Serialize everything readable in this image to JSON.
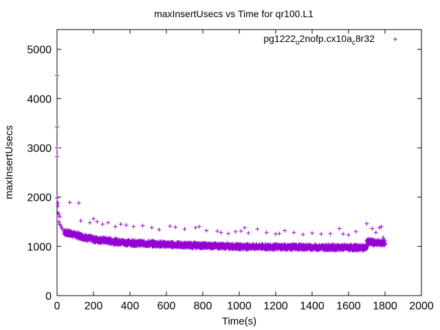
{
  "chart_data": {
    "type": "scatter",
    "title": "maxInsertUsecs vs Time for qr100.L1",
    "xlabel": "Time(s)",
    "ylabel": "maxInsertUsecs",
    "xlim": [
      0,
      2000
    ],
    "ylim": [
      0,
      5400
    ],
    "x_ticks": [
      0,
      200,
      400,
      600,
      800,
      1000,
      1200,
      1400,
      1600,
      1800,
      2000
    ],
    "y_ticks": [
      0,
      1000,
      2000,
      3000,
      4000,
      5000
    ],
    "grid": false,
    "legend": "top-right",
    "color": "#9400d3",
    "series": [
      {
        "name": "pg1222",
        "name_sub": "o",
        "name_mid": "2nofp.cx10a",
        "name_sub2": "c",
        "name_end": "8r32",
        "points": [
          [
            0,
            4470
          ],
          [
            0,
            3420
          ],
          [
            0,
            3000
          ],
          [
            0,
            2820
          ],
          [
            0,
            1980
          ],
          [
            5,
            1880
          ],
          [
            5,
            1820
          ],
          [
            5,
            1680
          ],
          [
            10,
            1650
          ],
          [
            15,
            1600
          ],
          [
            10,
            1500
          ],
          [
            15,
            1450
          ],
          [
            20,
            1420
          ],
          [
            25,
            1380
          ],
          [
            30,
            1350
          ],
          [
            40,
            1320
          ],
          [
            50,
            1300
          ],
          [
            70,
            1890
          ],
          [
            120,
            1880
          ],
          [
            130,
            1520
          ],
          [
            180,
            1480
          ],
          [
            200,
            1560
          ],
          [
            220,
            1500
          ],
          [
            250,
            1450
          ],
          [
            280,
            1480
          ],
          [
            320,
            1400
          ],
          [
            350,
            1450
          ],
          [
            380,
            1430
          ],
          [
            420,
            1400
          ],
          [
            470,
            1420
          ],
          [
            520,
            1380
          ],
          [
            560,
            1340
          ],
          [
            620,
            1410
          ],
          [
            650,
            1390
          ],
          [
            700,
            1350
          ],
          [
            760,
            1380
          ],
          [
            780,
            1400
          ],
          [
            820,
            1320
          ],
          [
            880,
            1310
          ],
          [
            900,
            1280
          ],
          [
            940,
            1260
          ],
          [
            980,
            1300
          ],
          [
            1010,
            1310
          ],
          [
            1030,
            1380
          ],
          [
            1050,
            1270
          ],
          [
            1100,
            1350
          ],
          [
            1150,
            1280
          ],
          [
            1200,
            1250
          ],
          [
            1220,
            1260
          ],
          [
            1250,
            1320
          ],
          [
            1300,
            1280
          ],
          [
            1350,
            1240
          ],
          [
            1400,
            1270
          ],
          [
            1450,
            1250
          ],
          [
            1500,
            1260
          ],
          [
            1550,
            1360
          ],
          [
            1570,
            1250
          ],
          [
            1600,
            1230
          ],
          [
            1640,
            1300
          ],
          [
            1700,
            1460
          ],
          [
            1730,
            1360
          ],
          [
            1750,
            1280
          ],
          [
            1770,
            1380
          ],
          [
            1780,
            1400
          ],
          [
            1790,
            1180
          ],
          [
            100,
            1250
          ],
          [
            150,
            1200
          ],
          [
            250,
            1130
          ],
          [
            300,
            1100
          ],
          [
            400,
            1080
          ],
          [
            500,
            1060
          ],
          [
            600,
            1040
          ],
          [
            700,
            1030
          ],
          [
            800,
            1010
          ],
          [
            900,
            1000
          ],
          [
            1000,
            990
          ],
          [
            1100,
            985
          ],
          [
            1200,
            980
          ],
          [
            1300,
            975
          ],
          [
            1400,
            975
          ],
          [
            1500,
            970
          ],
          [
            1600,
            965
          ],
          [
            1700,
            960
          ],
          [
            1710,
            1100
          ],
          [
            1750,
            1080
          ],
          [
            1800,
            1060
          ]
        ]
      }
    ],
    "band": {
      "x_start": 40,
      "x_end": 1700,
      "y_low": [
        [
          40,
          1230
        ],
        [
          200,
          1080
        ],
        [
          400,
          1010
        ],
        [
          700,
          970
        ],
        [
          1000,
          940
        ],
        [
          1700,
          915
        ]
      ],
      "y_high": [
        [
          40,
          1350
        ],
        [
          200,
          1200
        ],
        [
          400,
          1130
        ],
        [
          700,
          1080
        ],
        [
          1000,
          1050
        ],
        [
          1700,
          1030
        ]
      ]
    },
    "band2": {
      "x_start": 1700,
      "x_end": 1800,
      "y_low": [
        [
          1700,
          1020
        ],
        [
          1800,
          1010
        ]
      ],
      "y_high": [
        [
          1700,
          1150
        ],
        [
          1800,
          1120
        ]
      ]
    }
  }
}
